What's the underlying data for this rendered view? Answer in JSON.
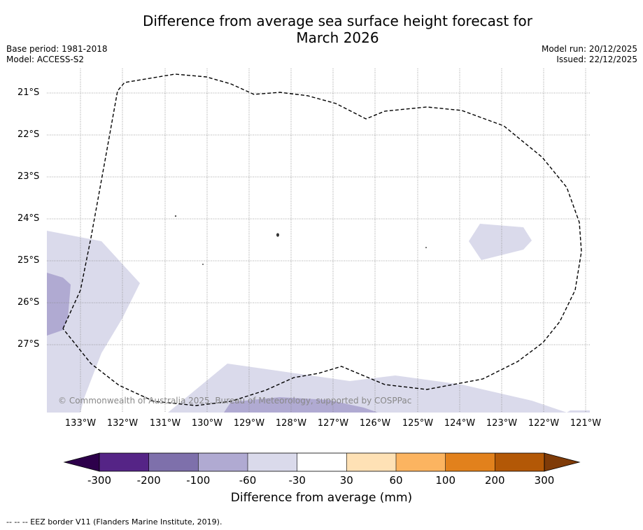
{
  "title_line1": "Difference from average sea surface height forecast for",
  "title_line2": "March 2026",
  "base_period": "Base period: 1981-2018",
  "model": "Model: ACCESS-S2",
  "model_run": "Model run: 20/12/2025",
  "issued": "Issued: 22/12/2025",
  "latitudes": [
    "21°S",
    "22°S",
    "23°S",
    "24°S",
    "25°S",
    "26°S",
    "27°S"
  ],
  "longitudes": [
    "133°W",
    "132°W",
    "131°W",
    "130°W",
    "129°W",
    "128°W",
    "127°W",
    "126°W",
    "125°W",
    "124°W",
    "123°W",
    "122°W",
    "121°W"
  ],
  "copyright": "© Commonwealth of Australia 2025, Bureau of Meteorology, supported by COSPPac",
  "colorbar": {
    "ticks": [
      "-300",
      "-200",
      "-100",
      "-60",
      "-30",
      "30",
      "60",
      "100",
      "200",
      "300"
    ],
    "colors": [
      "#552486",
      "#7e70ab",
      "#b0aad2",
      "#dadaeb",
      "#ffffff",
      "#fee1b5",
      "#fcb460",
      "#e2811c",
      "#b35806"
    ],
    "under_color": "#2d004b",
    "over_color": "#7f3b08",
    "label": "Difference from average (mm)"
  },
  "legend_note": "--  --  -- EEZ border V11 (Flanders Marine Institute, 2019)."
}
